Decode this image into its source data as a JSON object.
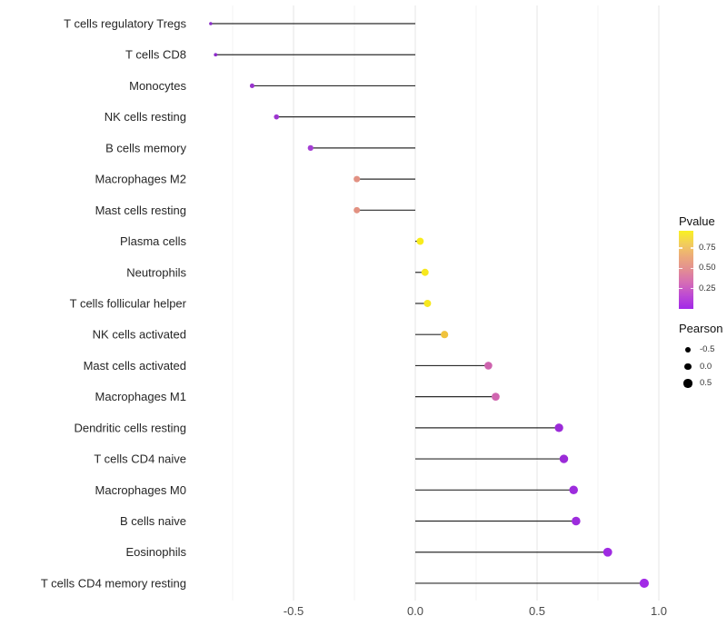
{
  "figure": {
    "background": "#ffffff",
    "text_color": "#262626",
    "axis_tick_color": "#4a4a4a"
  },
  "chart_data": {
    "type": "scatter",
    "variant": "horizontal-lollipop",
    "title": "",
    "xlabel": "",
    "ylabel": "",
    "grid": "on",
    "legend_position": "right",
    "x_axis": {
      "range": [
        -0.92,
        1.06
      ],
      "major_ticks": [
        -0.5,
        0.0,
        0.5,
        1.0
      ],
      "major_tick_labels": [
        "-0.5",
        "0.0",
        "0.5",
        "1.0"
      ],
      "minor_ticks": [
        -0.75,
        -0.25,
        0.25,
        0.75
      ]
    },
    "baseline_x": 0,
    "stem_color": "#2b2b2b",
    "points": [
      {
        "label": "T cells regulatory  Tregs",
        "pearson": -0.84,
        "pvalue": 0.01,
        "color": "#8a2fc8"
      },
      {
        "label": "T cells CD8",
        "pearson": -0.82,
        "pvalue": 0.01,
        "color": "#8d2bca"
      },
      {
        "label": "Monocytes",
        "pearson": -0.67,
        "pvalue": 0.05,
        "color": "#9934cd"
      },
      {
        "label": "NK cells resting",
        "pearson": -0.57,
        "pvalue": 0.07,
        "color": "#9d35d0"
      },
      {
        "label": "B cells memory",
        "pearson": -0.43,
        "pvalue": 0.12,
        "color": "#a43ed4"
      },
      {
        "label": "Macrophages M2",
        "pearson": -0.24,
        "pvalue": 0.48,
        "color": "#e29183"
      },
      {
        "label": "Mast cells resting",
        "pearson": -0.24,
        "pvalue": 0.48,
        "color": "#e29181"
      },
      {
        "label": "Plasma cells",
        "pearson": 0.02,
        "pvalue": 0.93,
        "color": "#f8ec1c"
      },
      {
        "label": "Neutrophils",
        "pearson": 0.04,
        "pvalue": 0.91,
        "color": "#f7e81e"
      },
      {
        "label": "T cells follicular helper",
        "pearson": 0.05,
        "pvalue": 0.91,
        "color": "#f7e81e"
      },
      {
        "label": "NK cells activated",
        "pearson": 0.12,
        "pvalue": 0.75,
        "color": "#f0c33d"
      },
      {
        "label": "Mast cells activated",
        "pearson": 0.3,
        "pvalue": 0.3,
        "color": "#ce63ae"
      },
      {
        "label": "Macrophages M1",
        "pearson": 0.33,
        "pvalue": 0.28,
        "color": "#d066b0"
      },
      {
        "label": "Dendritic cells resting",
        "pearson": 0.59,
        "pvalue": 0.03,
        "color": "#9b2bd8"
      },
      {
        "label": "T cells CD4 naive",
        "pearson": 0.61,
        "pvalue": 0.03,
        "color": "#9b2bd8"
      },
      {
        "label": "Macrophages M0",
        "pearson": 0.65,
        "pvalue": 0.02,
        "color": "#9d2cdd"
      },
      {
        "label": "B cells naive",
        "pearson": 0.66,
        "pvalue": 0.02,
        "color": "#9d2cdd"
      },
      {
        "label": "Eosinophils",
        "pearson": 0.79,
        "pvalue": 0.01,
        "color": "#9f2be2"
      },
      {
        "label": "T cells CD4 memory resting",
        "pearson": 0.94,
        "pvalue": 0.001,
        "color": "#a22ae6"
      }
    ],
    "legend": {
      "pvalue": {
        "title": "Pvalue",
        "tick_labels": [
          "0.75",
          "0.50",
          "0.25"
        ],
        "tick_values": [
          0.75,
          0.5,
          0.25
        ],
        "bar_range": [
          0.96,
          0.0
        ],
        "gradient_top_to_bottom": [
          "#f9f121",
          "#f2cd5c",
          "#eca97a",
          "#e28d93",
          "#d56cb6",
          "#bc49d4",
          "#a228e8"
        ]
      },
      "pearson": {
        "title": "Pearson",
        "entries": [
          {
            "label": "-0.5",
            "value": -0.5
          },
          {
            "label": "0.0",
            "value": 0.0
          },
          {
            "label": "0.5",
            "value": 0.5
          }
        ],
        "dot_color": "#000000"
      }
    }
  }
}
